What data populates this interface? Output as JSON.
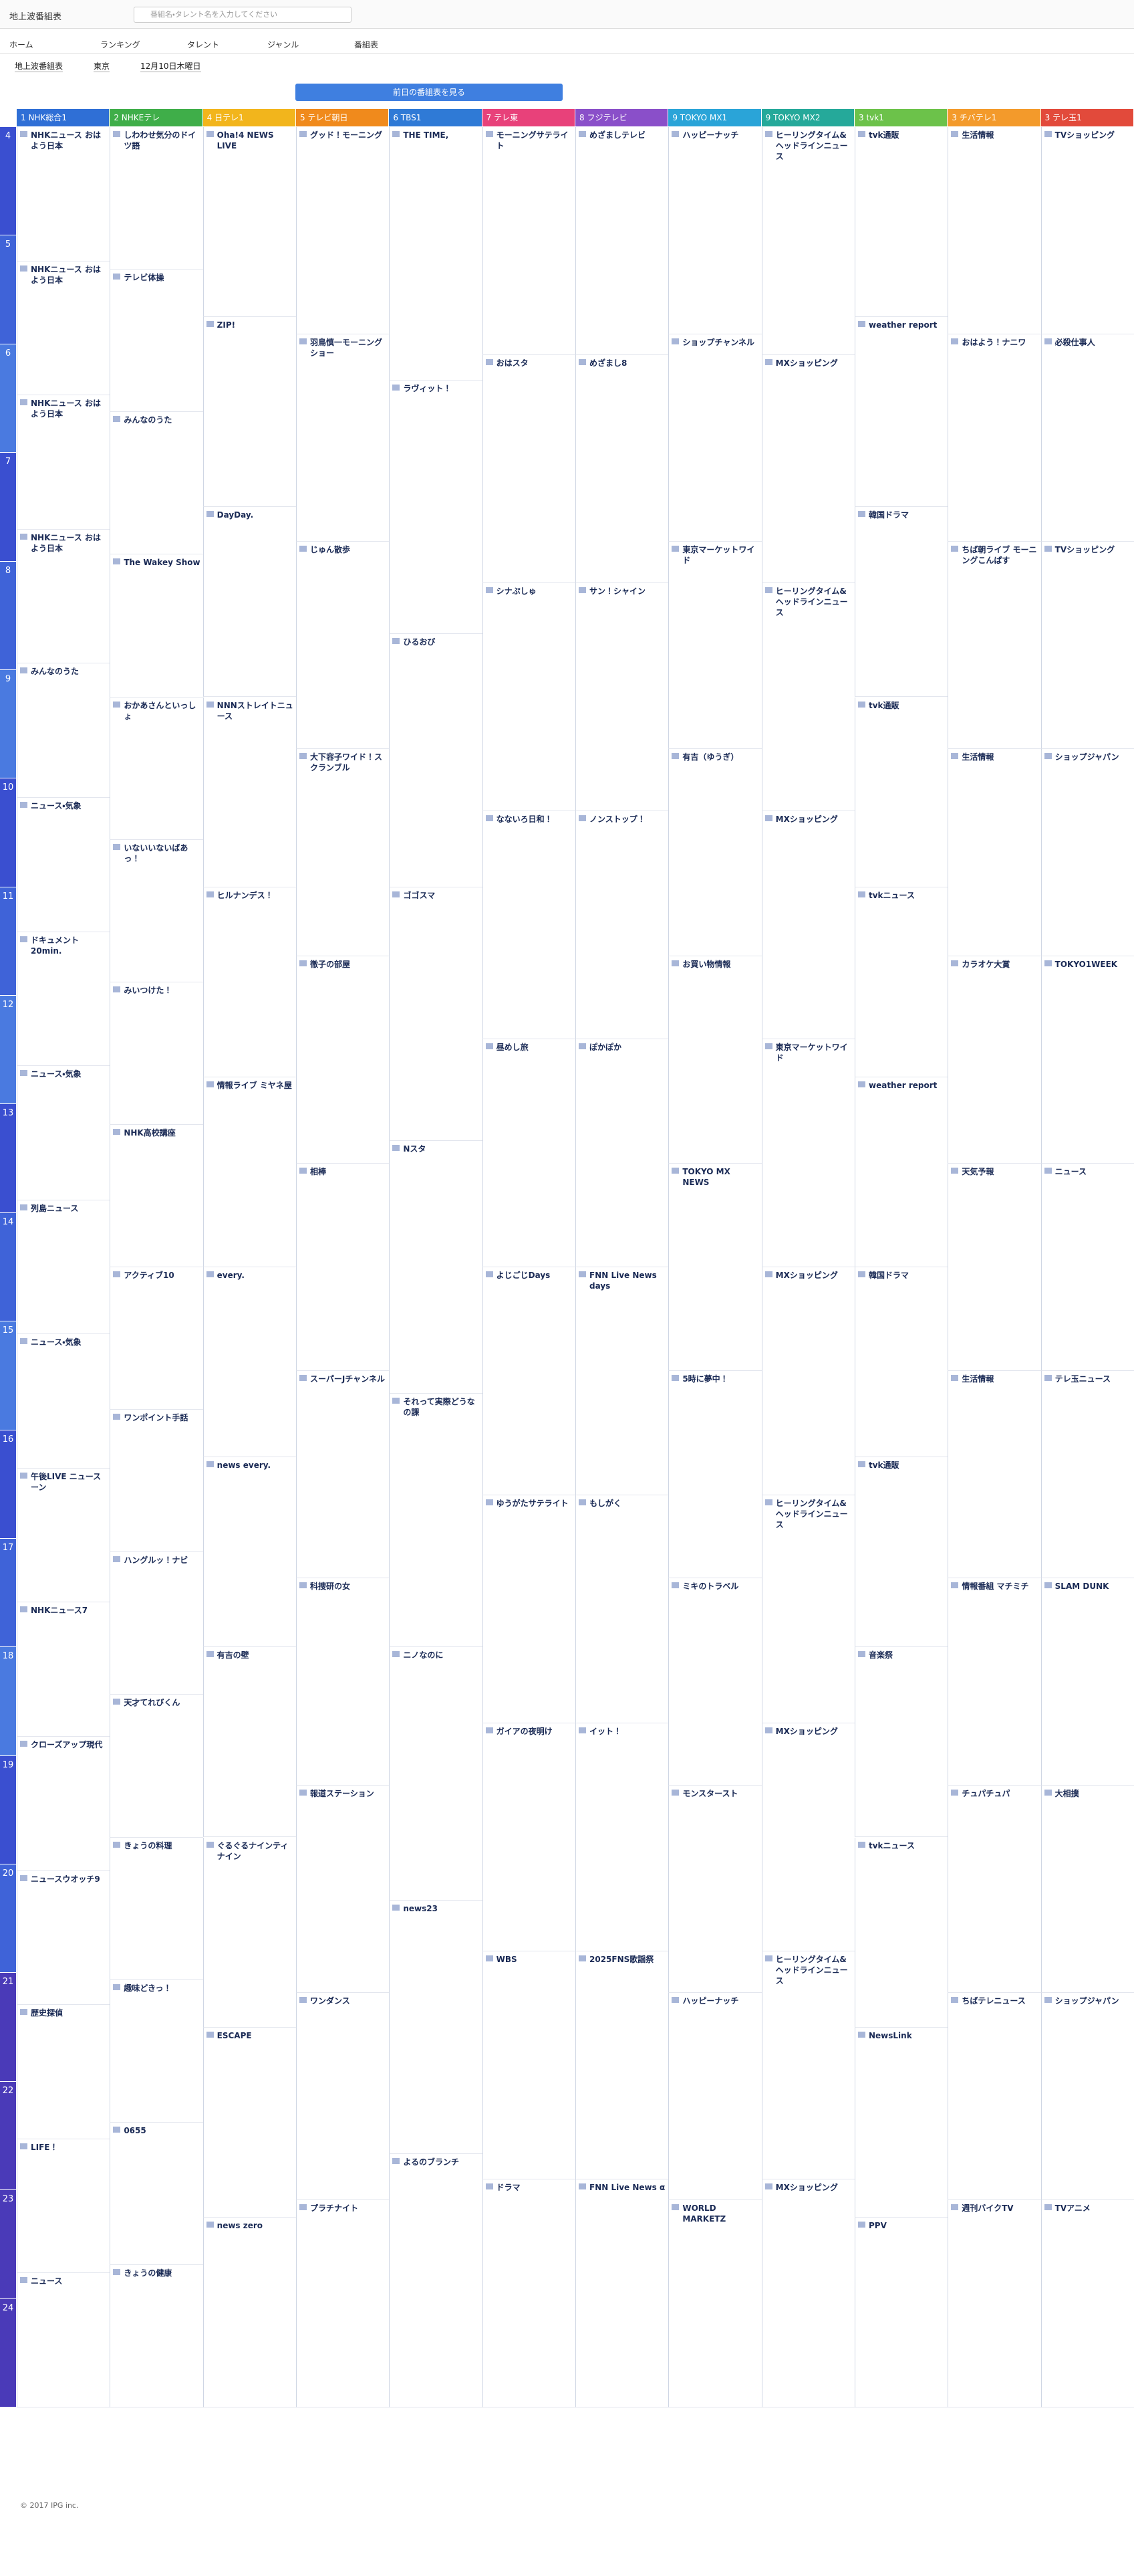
{
  "header": {
    "site": "地上波番組表",
    "search_placeholder": "番組名・タレント名を入力してください"
  },
  "nav": [
    "ホーム",
    "ランキング",
    "タレント",
    "ジャンル",
    "番組表"
  ],
  "filters": [
    "地上波番組表",
    "東京",
    "12月10日木曜日"
  ],
  "prev_button": "前日の番組表を見る",
  "channels": [
    {
      "label": "1 NHK総合1",
      "color": "#2f6fd6",
      "programs": [
        "NHKニュース おはよう日本",
        "NHKニュース おはよう日本",
        "NHKニュース おはよう日本",
        "NHKニュース おはよう日本",
        "みんなのうた",
        "ニュース・気象",
        "ドキュメント20min.",
        "ニュース・気象",
        "列島ニュース",
        "ニュース・気象",
        "午後LIVE ニュースーン",
        "NHKニュース7",
        "クローズアップ現代",
        "ニュースウオッチ9",
        "歴史探偵",
        "LIFE！",
        "ニュース"
      ]
    },
    {
      "label": "2 NHKEテレ",
      "color": "#3fae49",
      "programs": [
        "しわわせ気分のドイツ語",
        "テレビ体操",
        "みんなのうた",
        "The Wakey Show",
        "おかあさんといっしょ",
        "いないいないばあっ！",
        "みいつけた！",
        "NHK高校講座",
        "アクティブ10",
        "ワンポイント手話",
        "ハングルッ！ナビ",
        "天才てれびくん",
        "きょうの料理",
        "趣味どきっ！",
        "0655",
        "きょうの健康"
      ]
    },
    {
      "label": "4 日テレ1",
      "color": "#f2b51c",
      "programs": [
        "Oha!4 NEWS LIVE",
        "ZIP!",
        "DayDay.",
        "NNNストレイトニュース",
        "ヒルナンデス！",
        "情報ライブ ミヤネ屋",
        "every.",
        "news every.",
        "有吉の壁",
        "ぐるぐるナインティナイン",
        "ESCAPE",
        "news zero"
      ]
    },
    {
      "label": "5 テレビ朝日",
      "color": "#f08a1c",
      "programs": [
        "グッド！モーニング",
        "羽鳥慎一モーニングショー",
        "じゅん散歩",
        "大下容子ワイド！スクランブル",
        "徹子の部屋",
        "相棒",
        "スーパーJチャンネル",
        "科捜研の女",
        "報道ステーション",
        "ワンダンス",
        "プラチナイト"
      ]
    },
    {
      "label": "6 TBS1",
      "color": "#2f7ad6",
      "programs": [
        "THE TIME,",
        "ラヴィット！",
        "ひるおび",
        "ゴゴスマ",
        "Nスタ",
        "それって実際どうなの課",
        "ニノなのに",
        "news23",
        "よるのブランチ"
      ]
    },
    {
      "label": "7 テレ東",
      "color": "#e8417a",
      "programs": [
        "モーニングサテライト",
        "おはスタ",
        "シナぷしゅ",
        "なないろ日和！",
        "昼めし旅",
        "よじごじDays",
        "ゆうがたサテライト",
        "ガイアの夜明け",
        "WBS",
        "ドラマ"
      ]
    },
    {
      "label": "8 フジテレビ",
      "color": "#8a4fc9",
      "programs": [
        "めざましテレビ",
        "めざまし8",
        "サン！シャイン",
        "ノンストップ！",
        "ぽかぽか",
        "FNN Live News days",
        "もしがく",
        "イット！",
        "2025FNS歌謡祭",
        "FNN Live News α"
      ]
    },
    {
      "label": "9 TOKYO MX1",
      "color": "#2aa4d8",
      "programs": [
        "ハッピーナッチ",
        "ショップチャンネル",
        "東京マーケットワイド",
        "有吉（ゆうぎ）",
        "お買い物情報",
        "TOKYO MX NEWS",
        "5時に夢中！",
        "ミキのトラベル",
        "モンスタースト",
        "ハッピーナッチ",
        "WORLD MARKETZ"
      ]
    },
    {
      "label": "9 TOKYO MX2",
      "color": "#25a99a",
      "programs": [
        "ヒーリングタイム&ヘッドラインニュース",
        "MXショッピング",
        "ヒーリングタイム&ヘッドラインニュース",
        "MXショッピング",
        "東京マーケットワイド",
        "MXショッピング",
        "ヒーリングタイム&ヘッドラインニュース",
        "MXショッピング",
        "ヒーリングタイム&ヘッドラインニュース",
        "MXショッピング"
      ]
    },
    {
      "label": "3 tvk1",
      "color": "#6cc24a",
      "programs": [
        "tvk通販",
        "weather report",
        "韓国ドラマ",
        "tvk通販",
        "tvkニュース",
        "weather report",
        "韓国ドラマ",
        "tvk通販",
        "音楽祭",
        "tvkニュース",
        "NewsLink",
        "PPV"
      ]
    },
    {
      "label": "3 チバテレ1",
      "color": "#f39a2b",
      "programs": [
        "生活情報",
        "おはよう！ナニワ",
        "ちば朝ライブ モーニングこんぱす",
        "生活情報",
        "カラオケ大賞",
        "天気予報",
        "生活情報",
        "情報番組 マチミチ",
        "チュパチュパ",
        "ちばテレニュース",
        "週刊バイクTV"
      ]
    },
    {
      "label": "3 テレ玉1",
      "color": "#e24a3b",
      "programs": [
        "TVショッピング",
        "必殺仕事人",
        "TVショッピング",
        "ショップジャパン",
        "TOKYO1WEEK",
        "ニュース",
        "テレ玉ニュース",
        "SLAM DUNK",
        "大相撲",
        "ショップジャパン",
        "TVアニメ"
      ]
    }
  ],
  "hours": [
    4,
    5,
    6,
    7,
    8,
    9,
    10,
    11,
    12,
    13,
    14,
    15,
    16,
    17,
    18,
    19,
    20,
    21,
    22,
    23,
    24
  ],
  "footer": "© 2017 IPG inc."
}
